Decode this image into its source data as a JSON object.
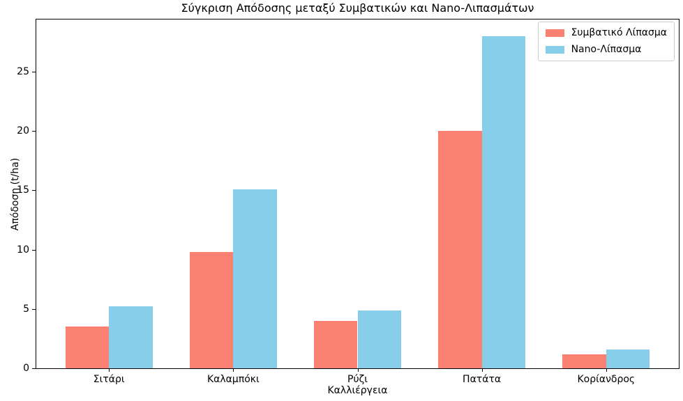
{
  "chart_data": {
    "type": "bar",
    "title": "Σύγκριση Απόδοσης μεταξύ Συμβατικών και Nano-Λιπασμάτων",
    "xlabel": "Καλλιέργεια",
    "ylabel": "Απόδοση (t/ha)",
    "categories": [
      "Σιτάρι",
      "Καλαμπόκι",
      "Ρύζι",
      "Πατάτα",
      "Κορίανδρος"
    ],
    "series": [
      {
        "name": "Συμβατικό Λίπασμα",
        "color": "#FA8072",
        "values": [
          3.5,
          9.8,
          4.0,
          20.0,
          1.2
        ]
      },
      {
        "name": "Nano-Λίπασμα",
        "color": "#87CEEB",
        "values": [
          5.2,
          15.1,
          4.9,
          28.0,
          1.6
        ]
      }
    ],
    "ylim": [
      0,
      29.4
    ],
    "yticks": [
      0,
      5,
      10,
      15,
      20,
      25
    ],
    "bar_width_units": 0.35,
    "grid": false,
    "legend_position": "upper right",
    "background": "#ffffff"
  }
}
